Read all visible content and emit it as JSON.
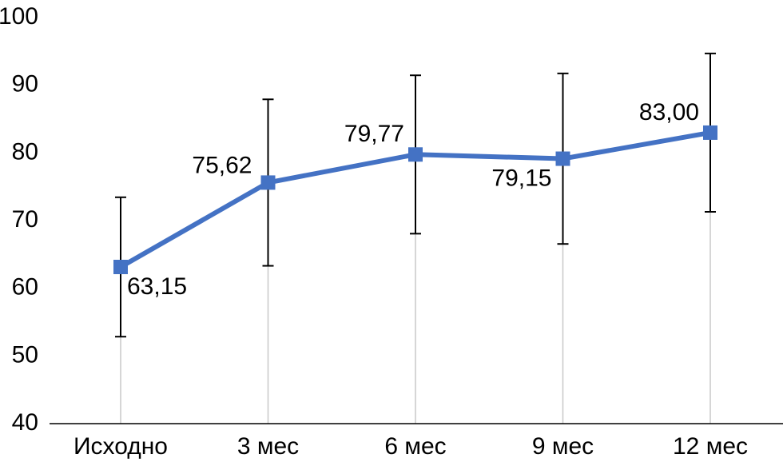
{
  "chart_data": {
    "type": "line",
    "categories": [
      "Исходно",
      "3 мес",
      "6 мес",
      "9 мес",
      "12 мес"
    ],
    "series": [
      {
        "color": "#4472c4",
        "values": [
          63.15,
          75.62,
          79.77,
          79.15,
          83.0
        ],
        "value_labels": [
          "63,15",
          "75,62",
          "79,77",
          "79,15",
          "83,00"
        ],
        "errors": [
          10.3,
          12.3,
          11.7,
          12.6,
          11.7
        ]
      }
    ],
    "ylim": [
      40,
      100
    ],
    "yticks": [
      40,
      50,
      60,
      70,
      80,
      90,
      100
    ],
    "grid": false,
    "drop_lines": true
  }
}
